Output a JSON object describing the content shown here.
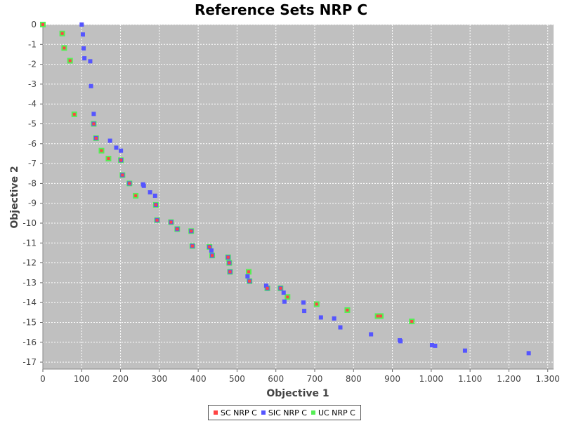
{
  "chart_data": {
    "type": "scatter",
    "title": "Reference Sets NRP C",
    "xlabel": "Objective 1",
    "ylabel": "Objective 2",
    "xlim": [
      0,
      1315
    ],
    "ylim": [
      -17.35,
      0
    ],
    "x_ticks": [
      0,
      100,
      200,
      300,
      400,
      500,
      600,
      700,
      800,
      900,
      1000,
      1100,
      1200,
      1300
    ],
    "x_tick_labels": [
      "0",
      "100",
      "200",
      "300",
      "400",
      "500",
      "600",
      "700",
      "800",
      "900",
      "1.000",
      "1.100",
      "1.200",
      "1.300"
    ],
    "y_ticks": [
      0,
      -1,
      -2,
      -3,
      -4,
      -5,
      -6,
      -7,
      -8,
      -9,
      -10,
      -11,
      -12,
      -13,
      -14,
      -15,
      -16,
      -17
    ],
    "y_tick_labels": [
      "0",
      "-1",
      "-2",
      "-3",
      "-4",
      "-5",
      "-6",
      "-7",
      "-8",
      "-9",
      "-10",
      "-11",
      "-12",
      "-13",
      "-14",
      "-15",
      "-16",
      "-17"
    ],
    "grid": true,
    "legend_position": "bottom-center",
    "series": [
      {
        "name": "SC NRP C",
        "color": "#ff4444",
        "points": [
          [
            0,
            0
          ],
          [
            50,
            -0.45
          ],
          [
            55,
            -1.18
          ],
          [
            70,
            -1.82
          ],
          [
            81,
            -4.52
          ],
          [
            131,
            -5.0
          ],
          [
            137,
            -5.72
          ],
          [
            151,
            -6.35
          ],
          [
            169,
            -6.75
          ],
          [
            201,
            -6.83
          ],
          [
            205,
            -7.58
          ],
          [
            223,
            -8.0
          ],
          [
            239,
            -8.62
          ],
          [
            291,
            -9.08
          ],
          [
            294,
            -9.85
          ],
          [
            330,
            -9.95
          ],
          [
            346,
            -10.3
          ],
          [
            382,
            -10.4
          ],
          [
            385,
            -11.15
          ],
          [
            429,
            -11.2
          ],
          [
            436,
            -11.63
          ],
          [
            477,
            -11.72
          ],
          [
            480,
            -12.0
          ],
          [
            482,
            -12.45
          ],
          [
            530,
            -12.45
          ],
          [
            532,
            -12.92
          ],
          [
            578,
            -13.28
          ],
          [
            612,
            -13.28
          ],
          [
            630,
            -13.72
          ],
          [
            705,
            -14.08
          ],
          [
            784,
            -14.38
          ],
          [
            862,
            -14.68
          ],
          [
            870,
            -14.68
          ],
          [
            950,
            -14.95
          ]
        ]
      },
      {
        "name": "SIC NRP C",
        "color": "#5555ff",
        "points": [
          [
            100,
            0.0
          ],
          [
            103,
            -0.5
          ],
          [
            105,
            -1.2
          ],
          [
            107,
            -1.7
          ],
          [
            122,
            -1.85
          ],
          [
            124,
            -3.1
          ],
          [
            131,
            -4.5
          ],
          [
            131,
            -5.0
          ],
          [
            137,
            -5.72
          ],
          [
            173,
            -5.85
          ],
          [
            189,
            -6.2
          ],
          [
            201,
            -6.35
          ],
          [
            201,
            -6.83
          ],
          [
            205,
            -7.58
          ],
          [
            223,
            -8.0
          ],
          [
            258,
            -8.05
          ],
          [
            260,
            -8.12
          ],
          [
            276,
            -8.45
          ],
          [
            289,
            -8.62
          ],
          [
            291,
            -9.08
          ],
          [
            294,
            -9.85
          ],
          [
            330,
            -9.95
          ],
          [
            346,
            -10.3
          ],
          [
            382,
            -10.4
          ],
          [
            385,
            -11.15
          ],
          [
            429,
            -11.2
          ],
          [
            434,
            -11.38
          ],
          [
            436,
            -11.63
          ],
          [
            477,
            -11.72
          ],
          [
            480,
            -12.0
          ],
          [
            482,
            -12.45
          ],
          [
            527,
            -12.68
          ],
          [
            532,
            -12.92
          ],
          [
            575,
            -13.15
          ],
          [
            578,
            -13.28
          ],
          [
            612,
            -13.28
          ],
          [
            620,
            -13.5
          ],
          [
            622,
            -13.95
          ],
          [
            671,
            -14.0
          ],
          [
            673,
            -14.42
          ],
          [
            716,
            -14.75
          ],
          [
            750,
            -14.8
          ],
          [
            766,
            -15.25
          ],
          [
            845,
            -15.6
          ],
          [
            919,
            -15.9
          ],
          [
            921,
            -15.95
          ],
          [
            1002,
            -16.15
          ],
          [
            1010,
            -16.18
          ],
          [
            1087,
            -16.42
          ],
          [
            1251,
            -16.55
          ]
        ]
      },
      {
        "name": "UC NRP C",
        "color": "#55ee55",
        "points": [
          [
            0,
            0
          ],
          [
            50,
            -0.45
          ],
          [
            55,
            -1.18
          ],
          [
            70,
            -1.82
          ],
          [
            81,
            -4.52
          ],
          [
            131,
            -5.0
          ],
          [
            137,
            -5.72
          ],
          [
            151,
            -6.35
          ],
          [
            169,
            -6.75
          ],
          [
            201,
            -6.83
          ],
          [
            205,
            -7.58
          ],
          [
            223,
            -8.0
          ],
          [
            239,
            -8.62
          ],
          [
            291,
            -9.08
          ],
          [
            294,
            -9.85
          ],
          [
            330,
            -9.95
          ],
          [
            346,
            -10.3
          ],
          [
            382,
            -10.4
          ],
          [
            385,
            -11.15
          ],
          [
            429,
            -11.2
          ],
          [
            436,
            -11.63
          ],
          [
            477,
            -11.72
          ],
          [
            480,
            -12.0
          ],
          [
            482,
            -12.45
          ],
          [
            530,
            -12.45
          ],
          [
            532,
            -12.92
          ],
          [
            578,
            -13.28
          ],
          [
            612,
            -13.28
          ],
          [
            630,
            -13.72
          ],
          [
            705,
            -14.08
          ],
          [
            784,
            -14.38
          ],
          [
            862,
            -14.68
          ],
          [
            870,
            -14.68
          ],
          [
            950,
            -14.95
          ]
        ]
      }
    ]
  }
}
